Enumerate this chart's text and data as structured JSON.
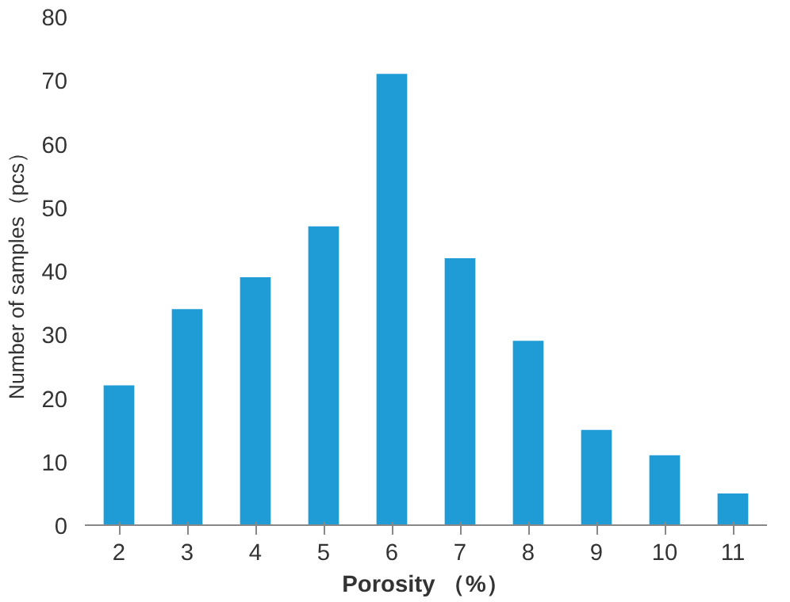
{
  "chart_data": {
    "type": "bar",
    "xlabel": "Porosity （%）",
    "ylabel": "Number of samples（pcs）",
    "categories": [
      "2",
      "3",
      "4",
      "5",
      "6",
      "7",
      "8",
      "9",
      "10",
      "11"
    ],
    "values": [
      22,
      34,
      39,
      47,
      71,
      42,
      29,
      15,
      11,
      5
    ],
    "color": "#1f9bd6",
    "ylim": [
      0,
      80
    ],
    "yticks": [
      0,
      10,
      20,
      30,
      40,
      50,
      60,
      70,
      80
    ],
    "grid": false
  }
}
